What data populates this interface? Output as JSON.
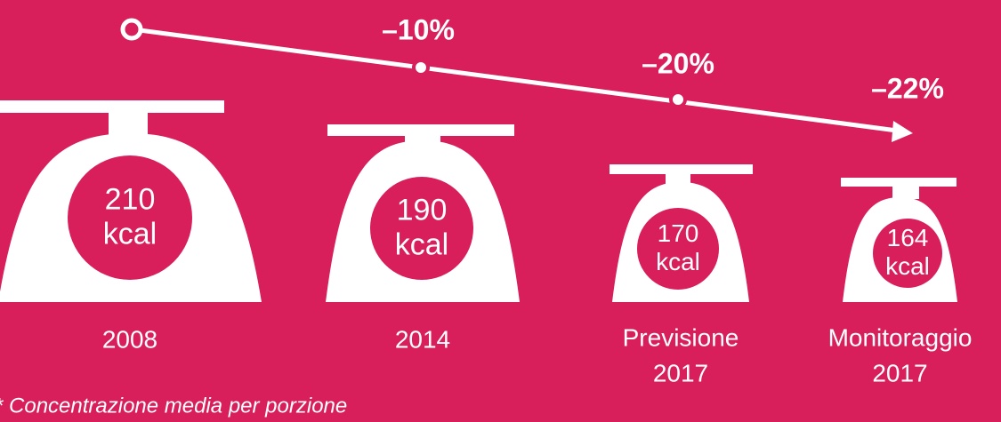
{
  "items": [
    {
      "value": "210",
      "unit": "kcal",
      "label": [
        "2008"
      ]
    },
    {
      "value": "190",
      "unit": "kcal",
      "label": [
        "2014"
      ]
    },
    {
      "value": "170",
      "unit": "kcal",
      "label": [
        "Previsione",
        "2017"
      ]
    },
    {
      "value": "164",
      "unit": "kcal",
      "label": [
        "Monitoraggio",
        "2017"
      ]
    }
  ],
  "changes": [
    "–10%",
    "–20%",
    "–22%"
  ],
  "footnote": "* Concentrazione media per porzione"
}
